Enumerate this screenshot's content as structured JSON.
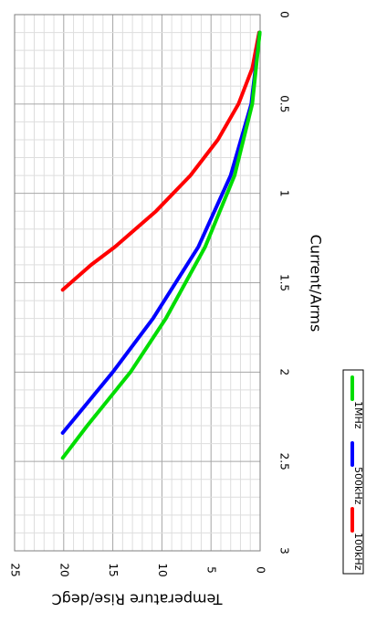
{
  "chart_data": {
    "type": "line",
    "orientation": "rotated-90-clockwise",
    "title": "",
    "xlabel": "Current/Arms",
    "ylabel": "Temperature Rise/degC",
    "xlim": [
      0,
      3
    ],
    "ylim": [
      0,
      25
    ],
    "x_ticks": [
      "0",
      "0.5",
      "1",
      "1.5",
      "2",
      "2.5",
      "3"
    ],
    "y_ticks": [
      "0",
      "5",
      "10",
      "15",
      "20",
      "25"
    ],
    "x_minor_step": 0.1,
    "y_minor_step": 1,
    "grid": true,
    "legend_position": "bottom",
    "series": [
      {
        "name": "100kHz",
        "color": "#ff0000",
        "points": [
          [
            0.1,
            0.1
          ],
          [
            0.3,
            0.8
          ],
          [
            0.5,
            2.2
          ],
          [
            0.7,
            4.3
          ],
          [
            0.9,
            7.1
          ],
          [
            1.1,
            10.6
          ],
          [
            1.3,
            14.8
          ],
          [
            1.4,
            17.2
          ],
          [
            1.54,
            20.1
          ]
        ]
      },
      {
        "name": "500kHz",
        "color": "#0000ff",
        "points": [
          [
            0.1,
            0.05
          ],
          [
            0.5,
            0.9
          ],
          [
            0.9,
            3.0
          ],
          [
            1.3,
            6.3
          ],
          [
            1.7,
            10.9
          ],
          [
            2.0,
            15.0
          ],
          [
            2.2,
            18.0
          ],
          [
            2.34,
            20.1
          ]
        ]
      },
      {
        "name": "1MHz",
        "color": "#00dd00",
        "points": [
          [
            0.1,
            0.04
          ],
          [
            0.5,
            0.8
          ],
          [
            0.9,
            2.6
          ],
          [
            1.3,
            5.6
          ],
          [
            1.7,
            9.6
          ],
          [
            2.0,
            13.2
          ],
          [
            2.3,
            17.6
          ],
          [
            2.48,
            20.1
          ]
        ]
      }
    ]
  }
}
